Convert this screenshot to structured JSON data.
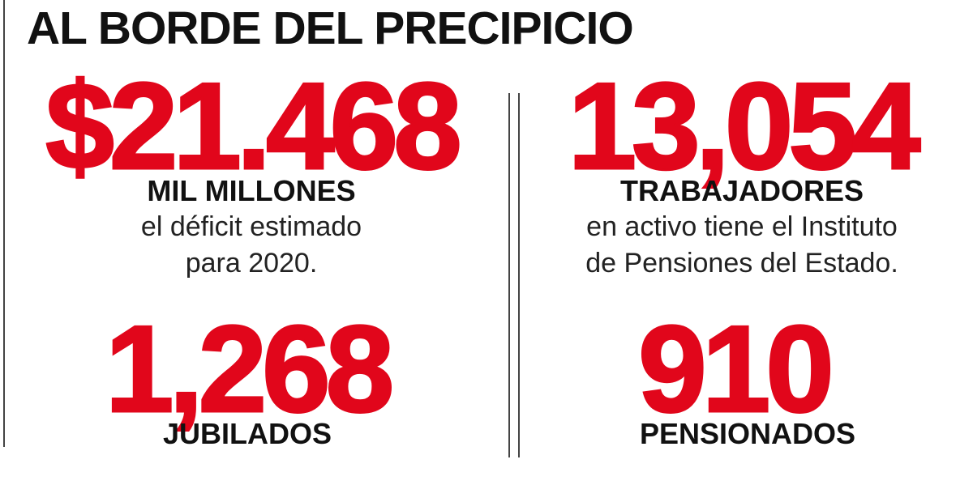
{
  "header": {
    "title": "AL BORDE DEL PRECIPICIO"
  },
  "stats": [
    {
      "number": "$21.468",
      "label": "MIL MILLONES",
      "description": [
        "el déficit estimado",
        "para 2020."
      ]
    },
    {
      "number": "13,054",
      "label": "TRABAJADORES",
      "description": [
        "en activo tiene el Instituto",
        "de Pensiones del Estado."
      ]
    },
    {
      "number": "1,268",
      "label": "JUBILADOS"
    },
    {
      "number": "910",
      "label": "PENSIONADOS"
    }
  ]
}
